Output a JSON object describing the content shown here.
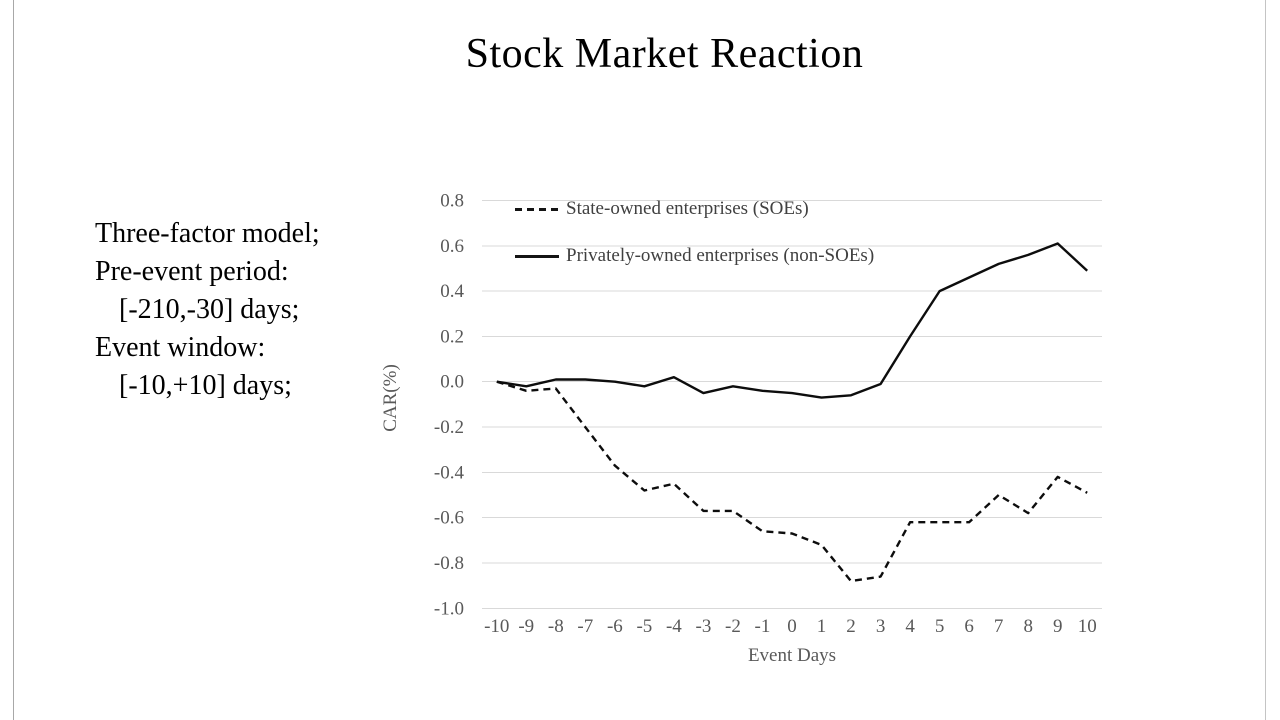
{
  "slide": {
    "title": "Stock Market Reaction"
  },
  "notes": {
    "lines": [
      "Three-factor model;",
      "Pre-event period:",
      "[-210,-30] days;",
      "Event window:",
      "[-10,+10] days;"
    ]
  },
  "colors": {
    "background": "#ffffff",
    "margin_gray": "#7f7f7f",
    "gridline": "#d9d9d9",
    "tick_text": "#595959",
    "axis_title_text": "#595959",
    "legend_text": "#404040",
    "series_line": "#0d0d0d"
  },
  "chart_data": {
    "type": "line",
    "title": "",
    "xlabel": "Event Days",
    "ylabel": "CAR(%)",
    "categories": [
      "-10",
      "-9",
      "-8",
      "-7",
      "-6",
      "-5",
      "-4",
      "-3",
      "-2",
      "-1",
      "0",
      "1",
      "2",
      "3",
      "4",
      "5",
      "6",
      "7",
      "8",
      "9",
      "10"
    ],
    "series": [
      {
        "name": "State-owned enterprises (SOEs)",
        "style": "dashed",
        "values": [
          0.0,
          -0.04,
          -0.03,
          -0.2,
          -0.37,
          -0.48,
          -0.45,
          -0.57,
          -0.57,
          -0.66,
          -0.67,
          -0.72,
          -0.88,
          -0.86,
          -0.62,
          -0.62,
          -0.62,
          -0.5,
          -0.58,
          -0.42,
          -0.49
        ]
      },
      {
        "name": "Privately-owned enterprises (non-SOEs)",
        "style": "solid",
        "values": [
          0.0,
          -0.02,
          0.01,
          0.01,
          0.0,
          -0.02,
          0.02,
          -0.05,
          -0.02,
          -0.04,
          -0.05,
          -0.07,
          -0.06,
          -0.01,
          0.2,
          0.4,
          0.46,
          0.52,
          0.56,
          0.61,
          0.49
        ]
      }
    ],
    "ylim": [
      -1.0,
      0.8
    ],
    "yticks": [
      0.8,
      0.6,
      0.4,
      0.2,
      0.0,
      -0.2,
      -0.4,
      -0.6,
      -0.8,
      -1.0
    ],
    "ytick_labels": [
      "0.8",
      "0.6",
      "0.4",
      "0.2",
      "0.0",
      "-0.2",
      "-0.4",
      "-0.6",
      "-0.8",
      "-1.0"
    ],
    "grid": "horizontal",
    "legend_position": "top-left-inside"
  }
}
